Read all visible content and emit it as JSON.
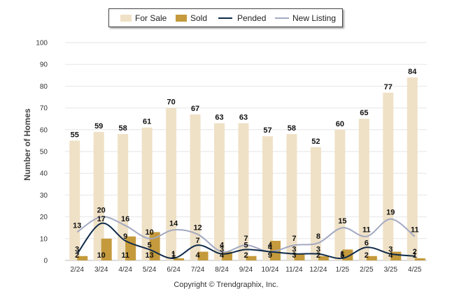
{
  "legend": {
    "for_sale": "For Sale",
    "sold": "Sold",
    "pended": "Pended",
    "new_listing": "New Listing"
  },
  "colors": {
    "for_sale": "#efe1c6",
    "sold": "#c49a3c",
    "pended": "#0f2a4a",
    "new_listing": "#a3a9c2"
  },
  "chart_data": {
    "type": "bar",
    "ylabel": "Number of Homes",
    "ylim": [
      0,
      100
    ],
    "yticks": [
      0,
      10,
      20,
      30,
      40,
      50,
      60,
      70,
      80,
      90,
      100
    ],
    "grid": true,
    "legend_position": "top",
    "categories": [
      "2/24",
      "3/24",
      "4/24",
      "5/24",
      "6/24",
      "7/24",
      "8/24",
      "9/24",
      "10/24",
      "11/24",
      "12/24",
      "1/25",
      "2/25",
      "3/25",
      "4/25"
    ],
    "series": [
      {
        "name": "For Sale",
        "kind": "bar",
        "values": [
          55,
          59,
          58,
          61,
          70,
          67,
          63,
          63,
          57,
          58,
          52,
          60,
          65,
          77,
          84
        ]
      },
      {
        "name": "Sold",
        "kind": "bar",
        "values": [
          2,
          10,
          11,
          13,
          1,
          4,
          4,
          2,
          9,
          3,
          2,
          5,
          2,
          4,
          1
        ]
      },
      {
        "name": "Pended",
        "kind": "line",
        "values": [
          3,
          17,
          9,
          5,
          1,
          7,
          3,
          5,
          4,
          3,
          3,
          1,
          6,
          3,
          2
        ]
      },
      {
        "name": "New Listing",
        "kind": "line",
        "values": [
          13,
          20,
          16,
          10,
          14,
          12,
          4,
          7,
          4,
          7,
          8,
          15,
          11,
          19,
          11
        ]
      }
    ]
  },
  "footer": {
    "credit": "Copyright © Trendgraphix, Inc."
  }
}
